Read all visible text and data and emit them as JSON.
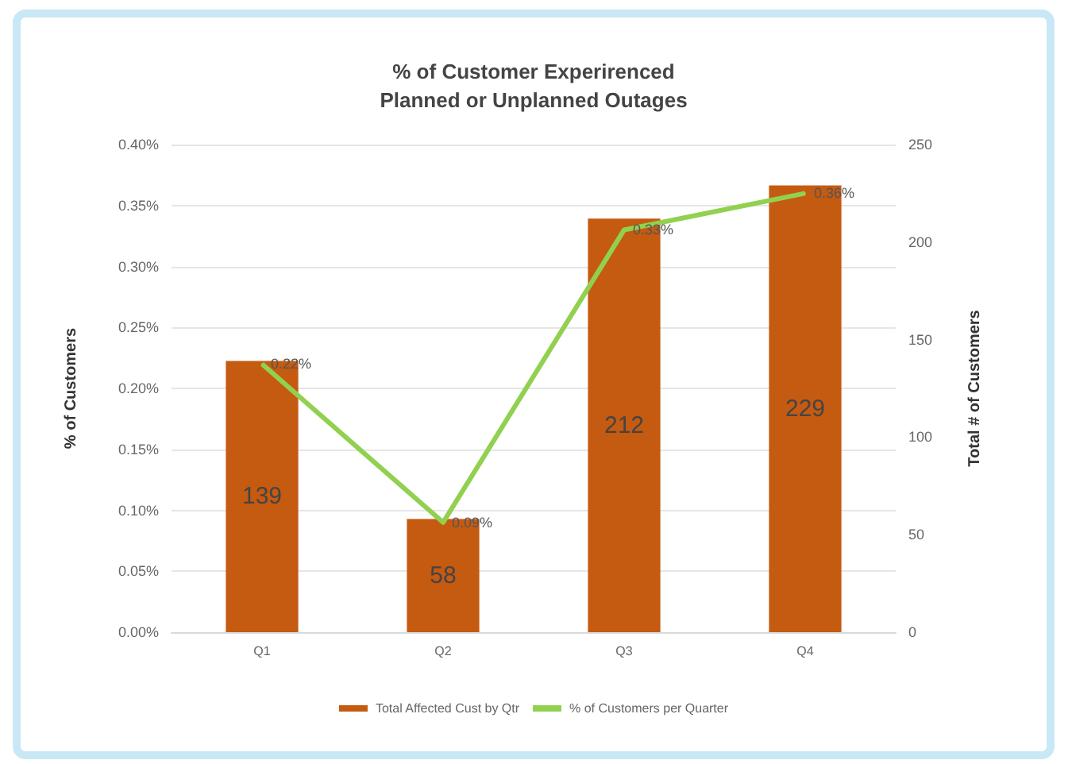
{
  "chart_data": {
    "type": "bar",
    "title": "% of Customer Experirenced\nPlanned or Unplanned Outages",
    "categories": [
      "Q1",
      "Q2",
      "Q3",
      "Q4"
    ],
    "series": [
      {
        "name": "Total Affected Cust by Qtr",
        "axis": "y2",
        "color": "#c55a11",
        "values": [
          139,
          58,
          212,
          229
        ],
        "value_labels": [
          "139",
          "58",
          "212",
          "229"
        ]
      },
      {
        "name": "% of Customers per Quarter",
        "type": "line",
        "color": "#92d050",
        "values": [
          0.22,
          0.09,
          0.33,
          0.36
        ],
        "value_labels": [
          "0.22%",
          "0.09%",
          "0.33%",
          "0.36%"
        ]
      }
    ],
    "ylabel": "% of Customers",
    "y2label": "Total # of Customers",
    "ylim": [
      0,
      0.4
    ],
    "yticks": [
      {
        "value": 0,
        "label": "0.00%"
      },
      {
        "value": 0.05,
        "label": "0.05%"
      },
      {
        "value": 0.1,
        "label": "0.10%"
      },
      {
        "value": 0.15,
        "label": "0.15%"
      },
      {
        "value": 0.2,
        "label": "0.20%"
      },
      {
        "value": 0.25,
        "label": "0.25%"
      },
      {
        "value": 0.3,
        "label": "0.30%"
      },
      {
        "value": 0.35,
        "label": "0.35%"
      },
      {
        "value": 0.4,
        "label": "0.40%"
      }
    ],
    "y2lim": [
      0,
      250
    ],
    "y2ticks": [
      0,
      50,
      100,
      150,
      200,
      250
    ],
    "grid": "y",
    "legend": "bottom",
    "marker": "none"
  }
}
